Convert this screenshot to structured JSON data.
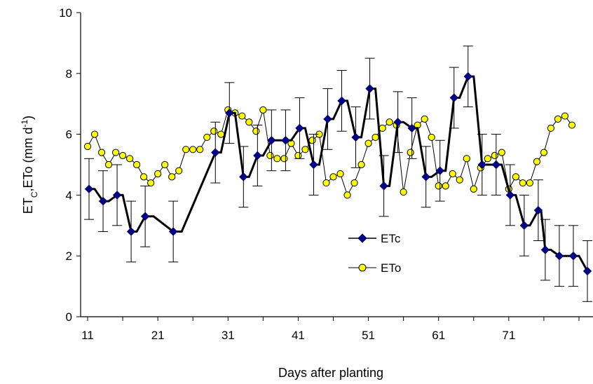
{
  "chart_data": {
    "type": "line",
    "xlabel": "Days after planting",
    "ylabel": "ETc,ETo (mm d-1)",
    "ylabel_parts": {
      "pre": "ET",
      "sub": "C",
      "mid": ",ETo (mm d",
      "sup": "-1",
      "post": ")"
    },
    "xlim": [
      10,
      83
    ],
    "ylim": [
      0,
      10
    ],
    "x_ticks": [
      11,
      21,
      31,
      41,
      51,
      61,
      71
    ],
    "y_ticks": [
      0,
      2,
      4,
      6,
      8,
      10
    ],
    "grid": false,
    "legend_position": "center-right",
    "series": [
      {
        "name": "ETc",
        "color": "#000000",
        "marker_color": "#000080",
        "marker": "diamond",
        "x": [
          11.2,
          13.2,
          15.2,
          17.2,
          19.2,
          23.2,
          29.2,
          31.2,
          33.2,
          35.2,
          37.2,
          39.2,
          41.2,
          43.2,
          45.2,
          47.2,
          49.2,
          51.2,
          53.2,
          55.2,
          57.2,
          59.2,
          61.2,
          63.2,
          65.2,
          67.2,
          69.2,
          71.2,
          73.2,
          75.2,
          76.2,
          78.2,
          80.2,
          82.2
        ],
        "y": [
          4.2,
          3.8,
          4.0,
          2.8,
          3.3,
          2.8,
          5.4,
          6.7,
          4.6,
          5.3,
          5.8,
          5.8,
          6.2,
          5.0,
          6.5,
          7.1,
          5.9,
          7.5,
          4.3,
          6.4,
          6.2,
          4.6,
          4.8,
          7.2,
          7.9,
          5.0,
          5.0,
          4.0,
          3.0,
          3.5,
          2.2,
          2.0,
          2.0,
          1.5
        ],
        "error": [
          1.0,
          1.0,
          1.0,
          1.0,
          1.0,
          1.0,
          1.0,
          1.0,
          1.0,
          1.0,
          1.0,
          1.0,
          1.0,
          1.0,
          1.0,
          1.0,
          1.0,
          1.0,
          1.0,
          1.0,
          1.0,
          1.0,
          1.0,
          1.0,
          1.0,
          1.0,
          1.0,
          1.0,
          1.0,
          1.0,
          1.0,
          1.0,
          1.0,
          1.0
        ]
      },
      {
        "name": "ETo",
        "color": "#000000",
        "marker_color": "#ffff00",
        "marker": "circle",
        "x": [
          11,
          12,
          13,
          14,
          15,
          16,
          17,
          18,
          19,
          20,
          21,
          22,
          23,
          24,
          25,
          26,
          27,
          28,
          29,
          30,
          31,
          32,
          33,
          34,
          35,
          36,
          37,
          38,
          39,
          40,
          41,
          42,
          43,
          44,
          45,
          46,
          47,
          48,
          49,
          50,
          51,
          52,
          53,
          54,
          55,
          56,
          57,
          58,
          59,
          60,
          61,
          62,
          63,
          64,
          65,
          66,
          67,
          68,
          69,
          70,
          71,
          72,
          73,
          74,
          75,
          76,
          77,
          78,
          79,
          80
        ],
        "y": [
          5.6,
          6.0,
          5.4,
          5.0,
          5.4,
          5.3,
          5.2,
          5.0,
          4.6,
          4.4,
          4.7,
          5.0,
          4.6,
          4.8,
          5.5,
          5.5,
          5.5,
          5.9,
          6.1,
          6.0,
          6.8,
          6.7,
          6.6,
          6.4,
          6.1,
          6.8,
          5.3,
          5.2,
          5.2,
          5.7,
          5.3,
          5.5,
          5.8,
          6.0,
          4.4,
          4.6,
          4.7,
          4.0,
          4.4,
          5.0,
          5.7,
          5.9,
          6.2,
          6.4,
          6.3,
          4.1,
          5.4,
          6.3,
          6.5,
          5.9,
          4.3,
          4.3,
          4.7,
          4.5,
          5.2,
          4.2,
          4.9,
          5.2,
          5.3,
          5.4,
          4.2,
          4.6,
          4.4,
          4.4,
          5.1,
          5.4,
          6.2,
          6.5,
          6.6,
          6.3
        ]
      }
    ]
  }
}
